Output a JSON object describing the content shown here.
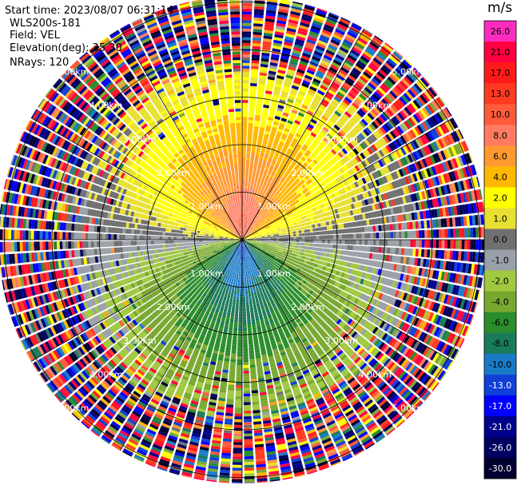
{
  "header": {
    "start_time": "Start time: 2023/08/07 06:31:14",
    "instrument": "WLS200s-181",
    "field": "Field: VEL",
    "elevation": "Elevation(deg): 35.30",
    "nrays": "NRays: 120"
  },
  "chart_data": {
    "type": "heatmap",
    "projection": "polar (PPI)",
    "n_rays": 120,
    "range_rings_km": [
      1.0,
      2.0,
      3.0,
      4.0,
      5.0
    ],
    "ring_labels": [
      "1.00km",
      "2.00km",
      "3.00km",
      "4.00km",
      "5.00km"
    ],
    "colorbar": {
      "unit": "m/s",
      "ticks": [
        "26.0",
        "21.0",
        "17.0",
        "13.0",
        "10.0",
        "8.0",
        "6.0",
        "4.0",
        "2.0",
        "1.0",
        "0.0",
        "-1.0",
        "-2.0",
        "-4.0",
        "-6.0",
        "-8.0",
        "-10.0",
        "-13.0",
        "-17.0",
        "-21.0",
        "-26.0",
        "-30.0"
      ],
      "colors": [
        "#ff2bbf",
        "#ff0040",
        "#ff1a1a",
        "#ff3a20",
        "#ff5a3a",
        "#ff7a60",
        "#ff9a30",
        "#ffb800",
        "#ffff00",
        "#e8e030",
        "#707070",
        "#9aa0a8",
        "#a0c840",
        "#78a830",
        "#2a8c2a",
        "#1a7a5a",
        "#1a7ac8",
        "#1040d8",
        "#0000ff",
        "#00008b",
        "#000060",
        "#000030"
      ]
    }
  }
}
